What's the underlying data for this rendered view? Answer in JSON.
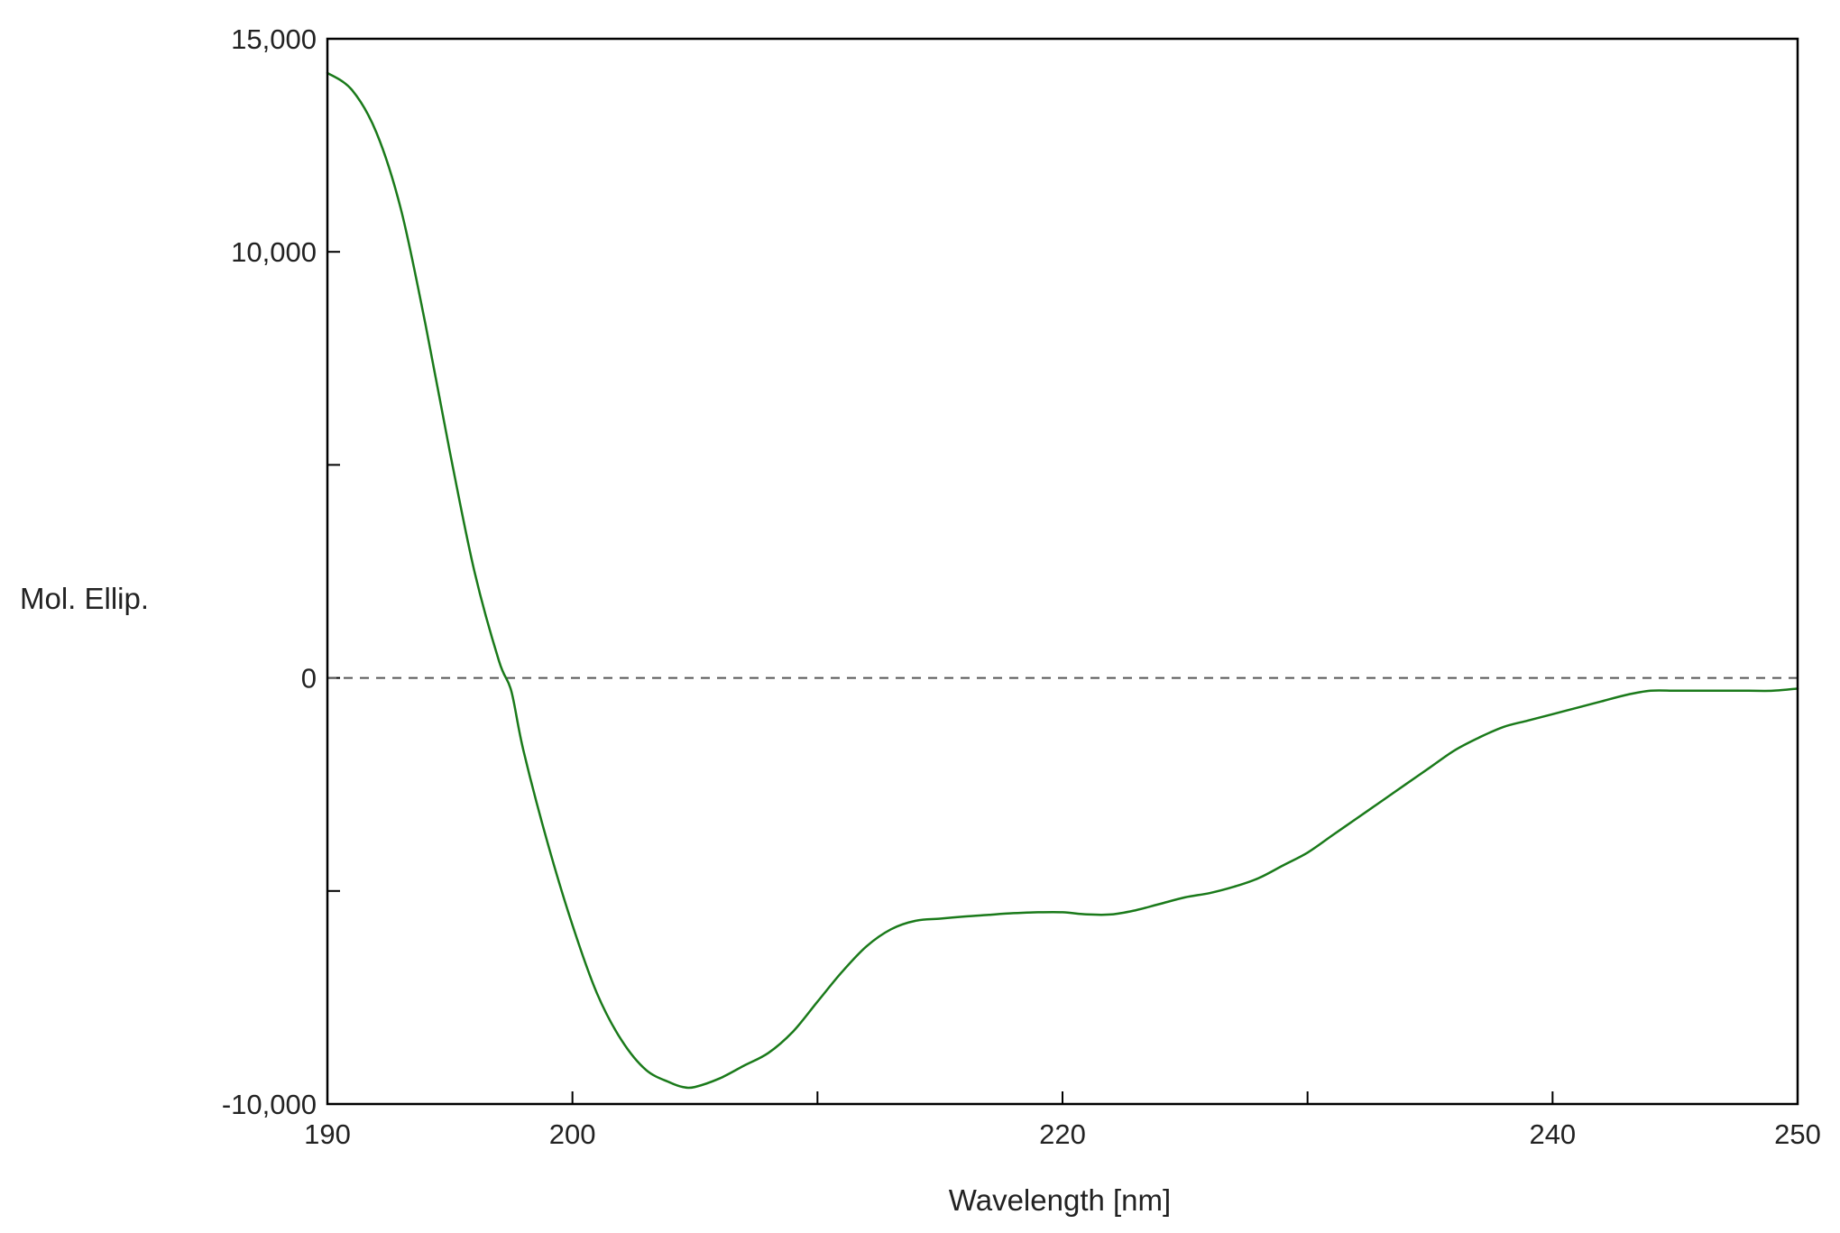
{
  "chart_data": {
    "type": "line",
    "title": "",
    "xlabel": "Wavelength [nm]",
    "ylabel": "Mol. Ellip.",
    "xlim": [
      190,
      250
    ],
    "ylim": [
      -10000,
      15000
    ],
    "x_tick_labels": [
      {
        "value": 190,
        "label": "190"
      },
      {
        "value": 200,
        "label": "200"
      },
      {
        "value": 220,
        "label": "220"
      },
      {
        "value": 240,
        "label": "240"
      },
      {
        "value": 250,
        "label": "250"
      }
    ],
    "x_minor_ticks": [
      210,
      230
    ],
    "y_tick_labels": [
      {
        "value": 15000,
        "label": "15,000"
      },
      {
        "value": 10000,
        "label": "10,000"
      },
      {
        "value": 0,
        "label": "0"
      },
      {
        "value": -10000,
        "label": "-10,000"
      }
    ],
    "y_minor_ticks": [
      5000,
      -5000
    ],
    "zero_line": {
      "value": 0,
      "style": "dashed",
      "color": "#555555"
    },
    "grid": false,
    "legend": "none",
    "series": [
      {
        "color": "#1a7a1a",
        "x": [
          190,
          191,
          192,
          193,
          194,
          195,
          196,
          197,
          197.5,
          198,
          199,
          200,
          201,
          202,
          203,
          204,
          204.5,
          205,
          206,
          207,
          208,
          209,
          210,
          211,
          212,
          213,
          214,
          215,
          216,
          217,
          218,
          219,
          220,
          221,
          222,
          223,
          224,
          225,
          226,
          227,
          228,
          229,
          230,
          231,
          232,
          233,
          234,
          235,
          236,
          237,
          238,
          239,
          240,
          241,
          242,
          243,
          244,
          245,
          246,
          247,
          248,
          249,
          250
        ],
        "y": [
          14200,
          13800,
          12800,
          11000,
          8300,
          5300,
          2500,
          400,
          -300,
          -1700,
          -3900,
          -5800,
          -7400,
          -8500,
          -9200,
          -9500,
          -9600,
          -9600,
          -9400,
          -9100,
          -8800,
          -8300,
          -7600,
          -6900,
          -6300,
          -5900,
          -5700,
          -5650,
          -5600,
          -5560,
          -5520,
          -5500,
          -5500,
          -5550,
          -5550,
          -5450,
          -5300,
          -5150,
          -5050,
          -4900,
          -4700,
          -4400,
          -4100,
          -3700,
          -3300,
          -2900,
          -2500,
          -2100,
          -1700,
          -1400,
          -1150,
          -1000,
          -850,
          -700,
          -550,
          -400,
          -300,
          -300,
          -300,
          -300,
          -300,
          -300,
          -250
        ]
      }
    ]
  }
}
